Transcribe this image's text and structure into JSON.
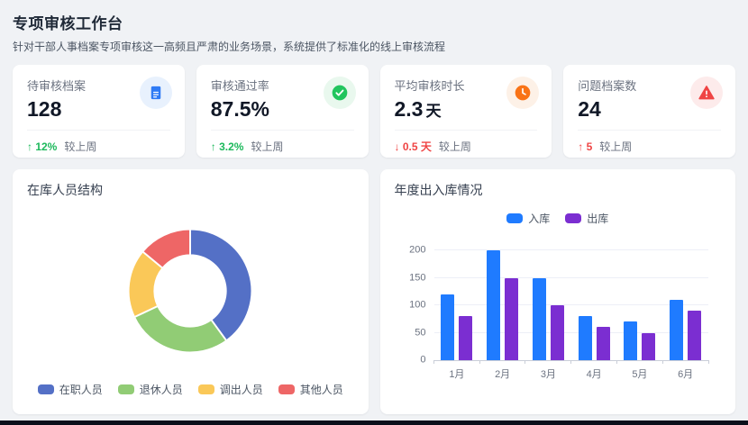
{
  "page": {
    "title": "专项审核工作台",
    "subtitle": "针对干部人事档案专项审核这一高频且严肃的业务场景，系统提供了标准化的线上审核流程"
  },
  "stats": [
    {
      "id": "pending-archives",
      "label": "待审核档案",
      "value": "128",
      "unit": "",
      "icon": "document-icon",
      "icon_color": "#2f7bf5",
      "icon_bg": "#e8f1fd",
      "trend_arrow": "↑",
      "trend_value": "12%",
      "trend_color": "#1db95c",
      "trend_suffix": "较上周"
    },
    {
      "id": "pass-rate",
      "label": "审核通过率",
      "value": "87.5%",
      "unit": "",
      "icon": "check-circle-icon",
      "icon_color": "#22c55e",
      "icon_bg": "#e9f8ee",
      "trend_arrow": "↑",
      "trend_value": "3.2%",
      "trend_color": "#1db95c",
      "trend_suffix": "较上周"
    },
    {
      "id": "avg-review-days",
      "label": "平均审核时长",
      "value": "2.3",
      "unit": "天",
      "icon": "clock-icon",
      "icon_color": "#f97316",
      "icon_bg": "#fdf1e7",
      "trend_arrow": "↓",
      "trend_value": "0.5 天",
      "trend_color": "#ef4444",
      "trend_suffix": "较上周"
    },
    {
      "id": "problem-archives",
      "label": "问题档案数",
      "value": "24",
      "unit": "",
      "icon": "warning-icon",
      "icon_color": "#ef4444",
      "icon_bg": "#fdebeb",
      "trend_arrow": "↑",
      "trend_value": "5",
      "trend_color": "#ef4444",
      "trend_suffix": "较上周"
    }
  ],
  "chart_data": [
    {
      "type": "pie",
      "title": "在库人员结构",
      "labels": [
        "在职人员",
        "退休人员",
        "调出人员",
        "其他人员"
      ],
      "values": [
        40,
        28,
        18,
        14
      ],
      "colors": [
        "#5470c6",
        "#91cc75",
        "#fac858",
        "#ee6666"
      ],
      "inner_radius_ratio": 0.58,
      "legend_position": "bottom"
    },
    {
      "type": "bar",
      "title": "年度出入库情况",
      "categories": [
        "1月",
        "2月",
        "3月",
        "4月",
        "5月",
        "6月"
      ],
      "series": [
        {
          "name": "入库",
          "color": "#1f7bff",
          "values": [
            120,
            200,
            150,
            80,
            70,
            110
          ]
        },
        {
          "name": "出库",
          "color": "#7b2ed1",
          "values": [
            80,
            150,
            100,
            60,
            50,
            90
          ]
        }
      ],
      "ylim": [
        0,
        200
      ],
      "yticks": [
        0,
        50,
        100,
        150,
        200
      ],
      "grid": true,
      "legend_position": "top"
    }
  ]
}
